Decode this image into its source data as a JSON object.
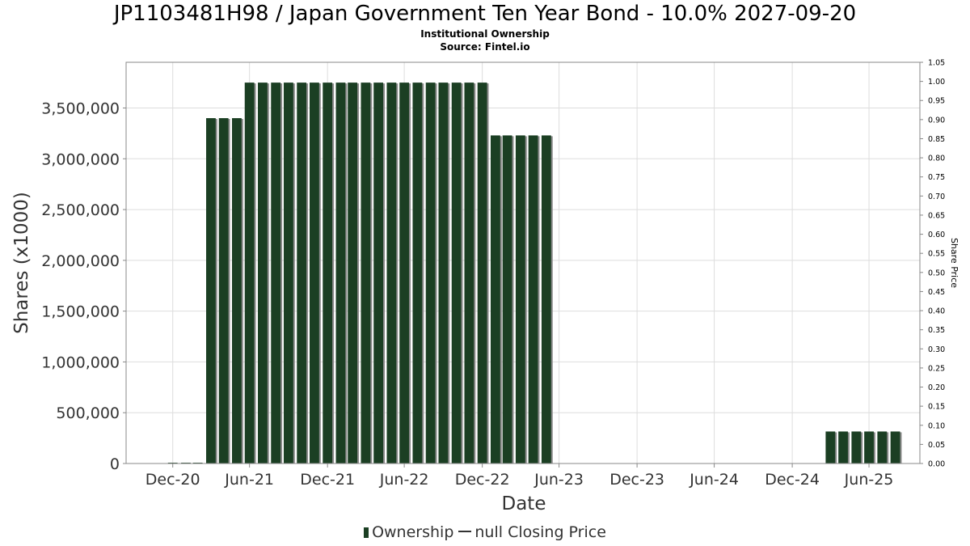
{
  "header": {
    "title": "JP1103481H98 / Japan Government Ten Year Bond - 10.0% 2027-09-20",
    "subtitle": "Institutional Ownership",
    "source": "Source: Fintel.io"
  },
  "legend": {
    "ownership_label": "Ownership",
    "price_label": "null Closing Price"
  },
  "colors": {
    "bar": "#1b3f23",
    "bar_shadow": "#8a8a8a",
    "grid": "#dddddd",
    "axis": "#888888",
    "text": "#333333"
  },
  "chart_data": {
    "type": "bar",
    "title": "JP1103481H98 / Japan Government Ten Year Bond - 10.0% 2027-09-20",
    "xlabel": "Date",
    "ylabel": "Shares (x1000)",
    "y2label": "Share Price",
    "ylim": [
      0,
      3950000
    ],
    "y2lim": [
      0,
      1.05
    ],
    "xlim": [
      "2020-09-12",
      "2025-10-28"
    ],
    "yticks": [
      0,
      500000,
      1000000,
      1500000,
      2000000,
      2500000,
      3000000,
      3500000
    ],
    "ytick_labels": [
      "0",
      "500,000",
      "1,000,000",
      "1,500,000",
      "2,000,000",
      "2,500,000",
      "3,000,000",
      "3,500,000"
    ],
    "y2ticks": [
      0,
      0.05,
      0.1,
      0.15,
      0.2,
      0.25,
      0.3,
      0.35,
      0.4,
      0.45,
      0.5,
      0.55,
      0.6,
      0.65,
      0.7,
      0.75,
      0.8,
      0.85,
      0.9,
      0.95,
      1.0,
      1.05
    ],
    "y2tick_labels": [
      "0.00",
      "0.05",
      "0.10",
      "0.15",
      "0.20",
      "0.25",
      "0.30",
      "0.35",
      "0.40",
      "0.45",
      "0.50",
      "0.55",
      "0.60",
      "0.65",
      "0.70",
      "0.75",
      "0.80",
      "0.85",
      "0.90",
      "0.95",
      "1.00",
      "1.05"
    ],
    "xticks": [
      "2020-12-31",
      "2021-06-30",
      "2021-12-31",
      "2022-06-30",
      "2022-12-31",
      "2023-06-30",
      "2023-12-31",
      "2024-06-30",
      "2024-12-31",
      "2025-06-30"
    ],
    "xtick_labels": [
      "Dec-20",
      "Jun-21",
      "Dec-21",
      "Jun-22",
      "Dec-22",
      "Jun-23",
      "Dec-23",
      "Jun-24",
      "Dec-24",
      "Jun-25"
    ],
    "grid": true,
    "legend_position": "bottom-center",
    "series": [
      {
        "name": "Ownership",
        "x": [
          "2020-12-31",
          "2021-01-31",
          "2021-02-28",
          "2021-03-31",
          "2021-04-30",
          "2021-05-31",
          "2021-06-30",
          "2021-07-31",
          "2021-08-31",
          "2021-09-30",
          "2021-10-31",
          "2021-11-30",
          "2021-12-31",
          "2022-01-31",
          "2022-02-28",
          "2022-03-31",
          "2022-04-30",
          "2022-05-31",
          "2022-06-30",
          "2022-07-31",
          "2022-08-31",
          "2022-09-30",
          "2022-10-31",
          "2022-11-30",
          "2022-12-31",
          "2023-01-31",
          "2023-02-28",
          "2023-03-31",
          "2023-04-30",
          "2023-05-31",
          "2025-03-31",
          "2025-04-30",
          "2025-05-31",
          "2025-06-30",
          "2025-07-31",
          "2025-08-31"
        ],
        "values": [
          0,
          0,
          0,
          3400000,
          3400000,
          3400000,
          3750000,
          3750000,
          3750000,
          3750000,
          3750000,
          3750000,
          3750000,
          3750000,
          3750000,
          3750000,
          3750000,
          3750000,
          3750000,
          3750000,
          3750000,
          3750000,
          3750000,
          3750000,
          3750000,
          3230000,
          3230000,
          3230000,
          3230000,
          3230000,
          315000,
          315000,
          315000,
          315000,
          315000,
          315000
        ]
      },
      {
        "name": "null Closing Price",
        "x": [],
        "values": []
      }
    ]
  }
}
